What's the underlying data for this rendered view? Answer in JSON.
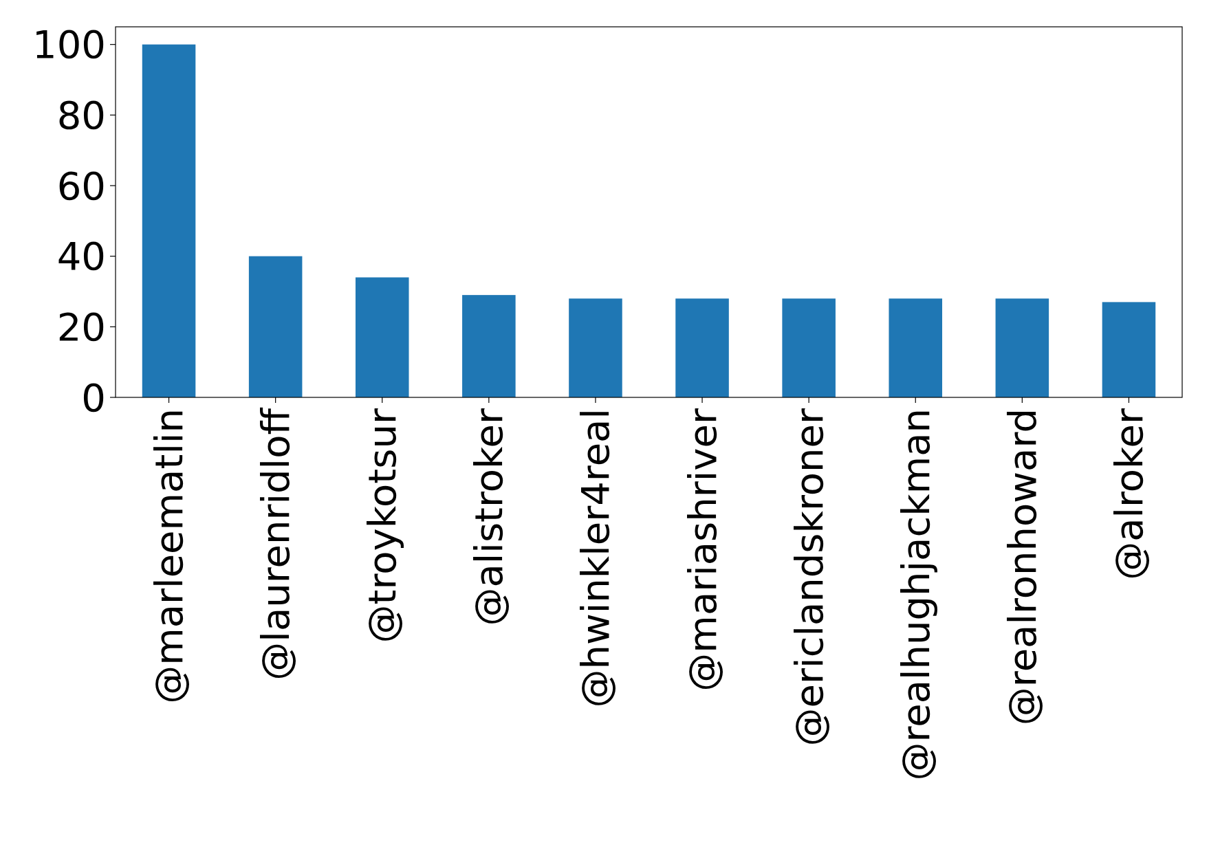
{
  "chart_data": {
    "type": "bar",
    "categories": [
      "@marleematlin",
      "@laurenridloff",
      "@troykotsur",
      "@alistroker",
      "@hwinkler4real",
      "@mariashriver",
      "@ericlandskroner",
      "@realhughjackman",
      "@realronhoward",
      "@alroker"
    ],
    "values": [
      100,
      40,
      34,
      29,
      28,
      28,
      28,
      28,
      28,
      27
    ],
    "color": "#1f77b4",
    "ylim": [
      0,
      105
    ],
    "yticks": [
      0,
      20,
      40,
      60,
      80,
      100
    ]
  }
}
